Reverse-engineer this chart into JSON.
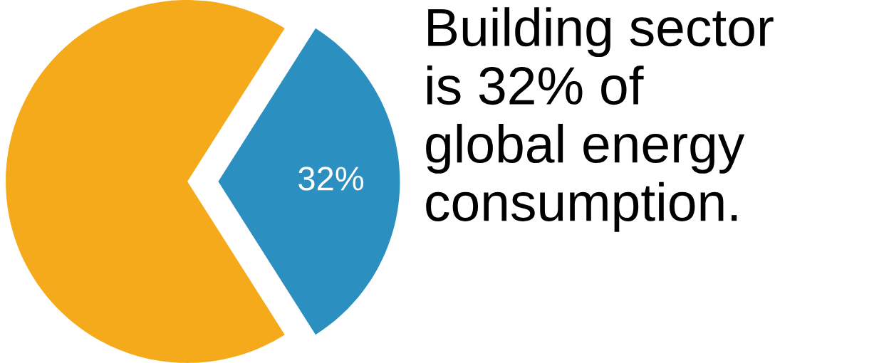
{
  "chart_data": {
    "type": "pie",
    "title": "Building sector\nis 32% of\nglobal energy\nconsumption.",
    "categories": [
      null,
      null
    ],
    "values": [
      32,
      68
    ],
    "colors": [
      "#2b8fbf",
      "#f5aa1c"
    ],
    "value_labels": [
      "32%",
      null
    ],
    "legend": false
  }
}
